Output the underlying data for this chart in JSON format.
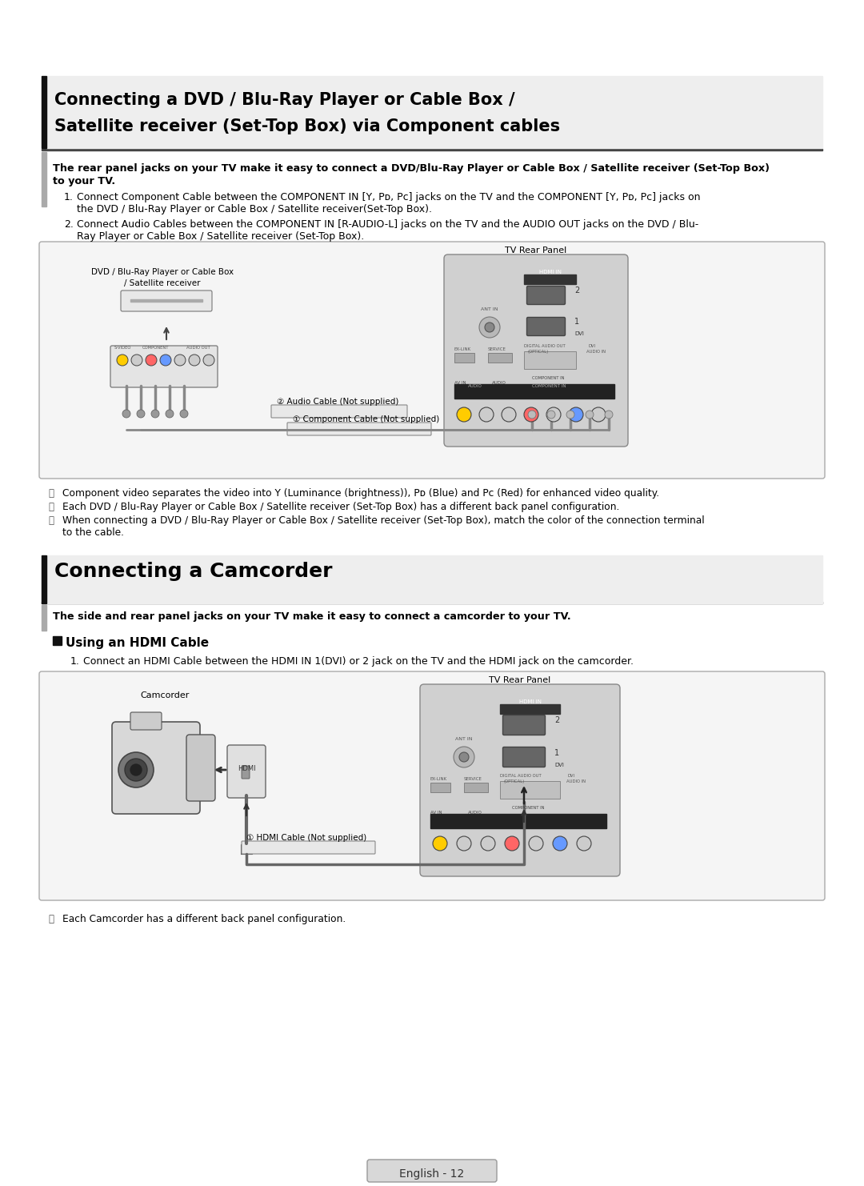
{
  "bg_color": "#ffffff",
  "section1": {
    "title_line1": "Connecting a DVD / Blu-Ray Player or Cable Box /",
    "title_line2": "Satellite receiver (Set-Top Box) via Component cables",
    "bold_intro1": "The rear panel jacks on your TV make it easy to connect a DVD/Blu-Ray Player or Cable Box / Satellite receiver (Set-Top Box)",
    "bold_intro2": "to your TV.",
    "step1_num": "1.",
    "step1_l1": "Connect Component Cable between the COMPONENT IN [Y, Pᴅ, Pᴄ] jacks on the TV and the COMPONENT [Y, Pᴅ, Pᴄ] jacks on",
    "step1_l2": "the DVD / Blu-Ray Player or Cable Box / Satellite receiver(Set-Top Box).",
    "step2_num": "2.",
    "step2_l1": "Connect Audio Cables between the COMPONENT IN [R-AUDIO-L] jacks on the TV and the AUDIO OUT jacks on the DVD / Blu-",
    "step2_l2": "Ray Player or Cable Box / Satellite receiver (Set-Top Box).",
    "diagram_label_device_l1": "DVD / Blu-Ray Player or Cable Box",
    "diagram_label_device_l2": "/ Satellite receiver",
    "diagram_label_tv": "TV Rear Panel",
    "cable2_label": "② Audio Cable (Not supplied)",
    "cable1_label": "① Component Cable (Not supplied)",
    "note_sym": "Ⓜ",
    "note1": "Component video separates the video into Y (Luminance (brightness)), Pᴅ (Blue) and Pᴄ (Red) for enhanced video quality.",
    "note2": "Each DVD / Blu-Ray Player or Cable Box / Satellite receiver (Set-Top Box) has a different back panel configuration.",
    "note3_l1": "When connecting a DVD / Blu-Ray Player or Cable Box / Satellite receiver (Set-Top Box), match the color of the connection terminal",
    "note3_l2": "to the cable."
  },
  "section2": {
    "title": "Connecting a Camcorder",
    "bold_intro": "The side and rear panel jacks on your TV make it easy to connect a camcorder to your TV.",
    "subsection": "Using an HDMI Cable",
    "step1_num": "1.",
    "step1": "Connect an HDMI Cable between the HDMI IN 1(DVI) or 2 jack on the TV and the HDMI jack on the camcorder.",
    "diagram_label_device": "Camcorder",
    "diagram_label_tv": "TV Rear Panel",
    "hdmi_label": "HDMI",
    "cable1_label": "① HDMI Cable (Not supplied)",
    "note_sym": "Ⓜ",
    "note1": "Each Camcorder has a different back panel configuration."
  },
  "footer": "English - 12"
}
